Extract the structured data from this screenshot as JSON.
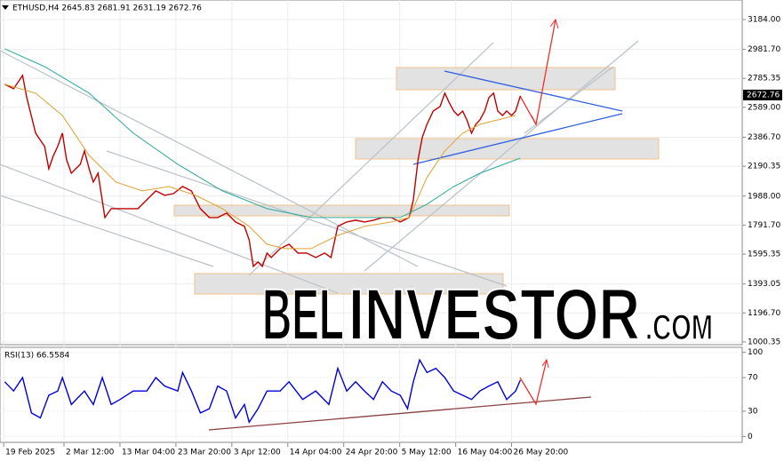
{
  "chart_data": [
    {
      "type": "line",
      "title": "ETHUSD,H4 2645.83 2681.91 2631.19 2672.76",
      "last_price": 2672.76,
      "watermark": [
        "BEL",
        "INVESTOR",
        ".COM"
      ],
      "xlim": [
        -0.7,
        140.8
      ],
      "ylim": [
        982,
        3316
      ],
      "xticks": [
        {
          "value": 0,
          "label": "19 Feb 2025"
        },
        {
          "value": 11.5,
          "label": "2 Mar 12:00"
        },
        {
          "value": 22.17,
          "label": "13 Mar 04:00"
        },
        {
          "value": 32.83,
          "label": "23 Mar 20:00"
        },
        {
          "value": 43.5,
          "label": "3 Apr 12:00"
        },
        {
          "value": 54.17,
          "label": "14 Apr 04:00"
        },
        {
          "value": 64.83,
          "label": "24 Apr 20:00"
        },
        {
          "value": 75.5,
          "label": "5 May 12:00"
        },
        {
          "value": 86.17,
          "label": "16 May 04:00"
        },
        {
          "value": 96.83,
          "label": "26 May 20:00"
        }
      ],
      "yticks": [
        {
          "value": 3184,
          "label": "3184.00"
        },
        {
          "value": 2981.7,
          "label": "2981.70"
        },
        2785.35,
        {
          "value": 2589,
          "label": "2589.00"
        },
        {
          "value": 2386.7,
          "label": "2386.70"
        },
        2190.35,
        {
          "value": 1988,
          "label": "1988.00"
        },
        {
          "value": 1791.7,
          "label": "1791.70"
        },
        1595.35,
        1393.05,
        {
          "value": 1196.7,
          "label": "1196.70"
        },
        1000.35
      ],
      "grid": true,
      "series": [
        {
          "color": "#c00000",
          "x": [
            0.2,
            1.9,
            3.6,
            4.4,
            6.1,
            7.8,
            8.6,
            9.5,
            10.3,
            11.2,
            12.0,
            12.9,
            14.6,
            15.4,
            16.3,
            17.1,
            18.0,
            19.3,
            20.5,
            22.2,
            23.9,
            25.6,
            27.3,
            29.0,
            30.7,
            32.4,
            34.1,
            35.8,
            37.5,
            39.2,
            40.8,
            42.5,
            44.2,
            45.9,
            46.8,
            47.6,
            48.5,
            49.3,
            50.2,
            51.0,
            52.7,
            54.4,
            56.1,
            57.8,
            59.5,
            61.2,
            62.4,
            63.7,
            65.4,
            67.1,
            68.8,
            70.5,
            72.2,
            73.9,
            75.6,
            77.3,
            78.1,
            79.0,
            79.8,
            80.7,
            81.9,
            83.2,
            84.1,
            84.9,
            85.8,
            86.6,
            87.5,
            88.3,
            89.2,
            90.0,
            90.8,
            91.7,
            92.5,
            93.4,
            94.2,
            95.1,
            95.9,
            96.8,
            97.6,
            98.5
          ],
          "values": [
            2745,
            2715,
            2805,
            2655,
            2414,
            2324,
            2173,
            2264,
            2324,
            2414,
            2234,
            2143,
            2204,
            2294,
            2173,
            2083,
            2143,
            1843,
            1903,
            1903,
            1903,
            1903,
            1963,
            2023,
            1993,
            2005,
            2053,
            2023,
            1903,
            1843,
            1843,
            1873,
            1813,
            1783,
            1692,
            1512,
            1542,
            1512,
            1602,
            1572,
            1632,
            1662,
            1602,
            1602,
            1572,
            1602,
            1572,
            1783,
            1813,
            1825,
            1813,
            1825,
            1843,
            1843,
            1813,
            1843,
            1963,
            2234,
            2384,
            2474,
            2564,
            2595,
            2685,
            2625,
            2564,
            2534,
            2564,
            2504,
            2414,
            2474,
            2504,
            2564,
            2655,
            2685,
            2564,
            2534,
            2564,
            2534,
            2564,
            2667
          ]
        },
        {
          "color": "#e0a030",
          "x": [
            0.2,
            6.1,
            11.2,
            16.3,
            21.4,
            26.4,
            31.5,
            36.6,
            41.7,
            46.8,
            50.2,
            53.6,
            58.6,
            63.7,
            68.8,
            73.9,
            77.3,
            80.7,
            84.1,
            87.5,
            90.8,
            94.2,
            97.6
          ],
          "values": [
            2745,
            2685,
            2534,
            2264,
            2083,
            2023,
            2053,
            1993,
            1903,
            1783,
            1662,
            1632,
            1632,
            1722,
            1783,
            1813,
            1843,
            2114,
            2294,
            2414,
            2474,
            2504,
            2534
          ]
        },
        {
          "color": "#2aa89a",
          "x": [
            0.2,
            7.8,
            16.3,
            24.7,
            33.2,
            41.7,
            50.2,
            58.6,
            67.1,
            75.6,
            80.7,
            85.8,
            90.8,
            98.5
          ],
          "values": [
            2986,
            2865,
            2685,
            2414,
            2204,
            2023,
            1903,
            1843,
            1843,
            1843,
            1933,
            2053,
            2143,
            2245
          ]
        }
      ]
    },
    {
      "type": "line",
      "title": "RSI(13) 66.5584",
      "ylim": [
        -7,
        106
      ],
      "yticks": [
        0,
        30,
        70,
        100
      ],
      "series": [
        {
          "color": "#0000dd",
          "x": [
            0.2,
            1.9,
            3.6,
            5.3,
            7.0,
            8.6,
            10.3,
            11.2,
            12.9,
            15.4,
            17.1,
            18.8,
            20.5,
            22.2,
            24.7,
            27.3,
            29.0,
            30.7,
            33.2,
            34.1,
            35.8,
            37.5,
            39.2,
            40.8,
            42.5,
            44.2,
            45.9,
            46.8,
            48.5,
            50.2,
            52.7,
            54.4,
            57.0,
            59.5,
            62.0,
            63.7,
            65.4,
            67.1,
            68.8,
            70.5,
            72.2,
            73.9,
            75.6,
            77.0,
            78.1,
            79.3,
            80.7,
            82.4,
            84.1,
            85.8,
            87.5,
            89.2,
            90.8,
            92.5,
            94.2,
            95.9,
            97.6,
            98.5
          ],
          "values": [
            65,
            54,
            70,
            28,
            22,
            49,
            54,
            70,
            38,
            54,
            38,
            70,
            38,
            44,
            54,
            54,
            70,
            60,
            54,
            76,
            54,
            28,
            33,
            60,
            54,
            22,
            38,
            17,
            33,
            54,
            54,
            65,
            44,
            54,
            38,
            81,
            54,
            65,
            54,
            44,
            65,
            54,
            49,
            33,
            65,
            91,
            76,
            81,
            70,
            54,
            49,
            44,
            54,
            60,
            65,
            44,
            54,
            67
          ]
        }
      ]
    }
  ]
}
